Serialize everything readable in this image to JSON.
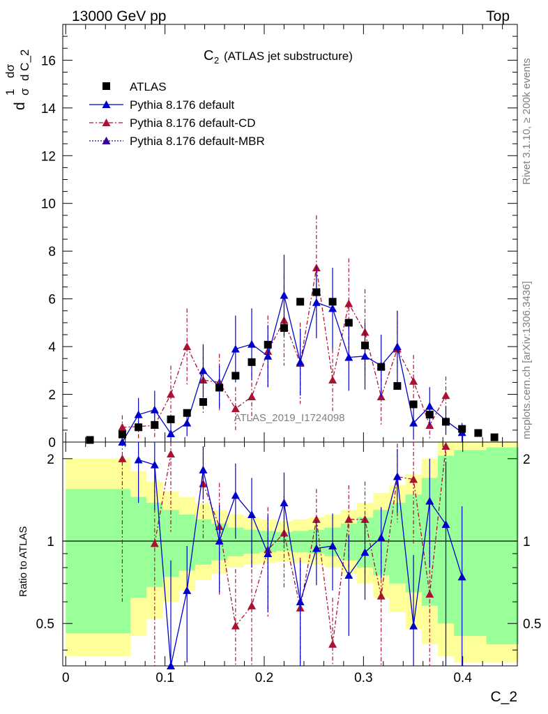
{
  "header": {
    "left": "13000 GeV pp",
    "right": "Top"
  },
  "side": {
    "rivet": "Rivet 3.1.10, ≥ 200k events",
    "mcplots": "mcplots.cern.ch [arXiv:1306.3436]"
  },
  "watermark": "ATLAS_2019_I1724098",
  "chart_data": {
    "type": "scatter",
    "title_main": "C",
    "title_sub": "2",
    "title_rest": "(ATLAS jet substructure)",
    "xlabel": "C_2",
    "ylabel": {
      "d1": "d",
      "one": "1",
      "sigma": "σ",
      "dsig": "dσ",
      "dC": "d C_2"
    },
    "ratio_ylabel": "Ratio to ATLAS",
    "xlim": [
      -0.003,
      0.455
    ],
    "ylim": [
      0,
      17.5
    ],
    "ratio_ylim": [
      0.35,
      2.3
    ],
    "x_ticks": [
      "0",
      "0.1",
      "0.2",
      "0.3",
      "0.4"
    ],
    "x_tick_values": [
      0,
      0.1,
      0.2,
      0.3,
      0.4
    ],
    "y_ticks": [
      "0",
      "2",
      "4",
      "6",
      "8",
      "10",
      "12",
      "14",
      "16"
    ],
    "y_tick_values": [
      0,
      2,
      4,
      6,
      8,
      10,
      12,
      14,
      16
    ],
    "ratio_ticks": [
      "0.5",
      "1",
      "2"
    ],
    "ratio_tick_values": [
      0.5,
      1,
      2
    ],
    "bin_edges": [
      0.0,
      0.0163,
      0.0326,
      0.0489,
      0.0652,
      0.0815,
      0.0978,
      0.1141,
      0.1304,
      0.1467,
      0.163,
      0.1793,
      0.1956,
      0.2119,
      0.2282,
      0.2445,
      0.2608,
      0.2771,
      0.2934,
      0.3097,
      0.326,
      0.3423,
      0.3586,
      0.3749,
      0.3912,
      0.4075,
      0.4238,
      0.4401,
      0.4564
    ],
    "x": [
      0.0244,
      0.057,
      0.0733,
      0.0896,
      0.1059,
      0.1222,
      0.1385,
      0.1548,
      0.1711,
      0.1874,
      0.2037,
      0.22,
      0.2363,
      0.2526,
      0.2689,
      0.2852,
      0.3015,
      0.3178,
      0.3341,
      0.3504,
      0.3667,
      0.383,
      0.3993,
      0.4156,
      0.4319
    ],
    "series": [
      {
        "name": "ATLAS",
        "color": "#000000",
        "values": [
          0.05,
          0.32,
          0.62,
          0.72,
          0.95,
          1.22,
          1.68,
          2.28,
          2.78,
          3.35,
          4.08,
          4.78,
          5.88,
          6.28,
          5.88,
          5.0,
          4.05,
          3.15,
          2.35,
          1.58,
          1.15,
          0.85,
          0.55,
          0.38,
          0.2
        ]
      },
      {
        "name": "Pythia 8.176 default",
        "color": "#0000cc",
        "x": [
          0.057,
          0.0733,
          0.0896,
          0.1059,
          0.1222,
          0.1385,
          0.1548,
          0.1711,
          0.1874,
          0.2037,
          0.22,
          0.2363,
          0.2526,
          0.2689,
          0.2852,
          0.3015,
          0.3178,
          0.3341,
          0.3504,
          0.3667,
          0.383,
          0.3993
        ],
        "values": [
          0.0,
          1.15,
          1.35,
          0.35,
          0.8,
          3.0,
          2.3,
          3.9,
          4.1,
          3.6,
          6.15,
          3.35,
          5.85,
          5.6,
          3.55,
          3.6,
          3.2,
          4.0,
          0.8,
          1.5,
          0.9,
          0.4
        ],
        "err": [
          0.0,
          0.7,
          0.8,
          0.5,
          0.55,
          1.1,
          0.9,
          1.4,
          1.5,
          1.3,
          1.7,
          1.4,
          1.5,
          1.7,
          1.4,
          1.4,
          1.3,
          1.5,
          0.7,
          0.8,
          0.6,
          0.4
        ],
        "ratio": [
          null,
          1.98,
          1.9,
          0.35,
          0.66,
          1.82,
          1.0,
          1.47,
          1.25,
          0.9,
          1.38,
          0.6,
          0.94,
          0.96,
          0.75,
          0.91,
          1.03,
          1.72,
          0.49,
          1.4,
          1.15,
          0.74
        ],
        "ratio_err": [
          null,
          0.6,
          0.6,
          0.5,
          0.3,
          0.4,
          0.35,
          0.45,
          0.45,
          0.35,
          0.4,
          0.25,
          0.25,
          0.3,
          0.3,
          0.3,
          0.3,
          0.45,
          0.4,
          0.6,
          0.8,
          0.6
        ]
      },
      {
        "name": "Pythia 8.176 default-CD",
        "color": "#aa1133",
        "x": [
          0.057,
          0.0733,
          0.0896,
          0.1059,
          0.1222,
          0.1385,
          0.1548,
          0.1711,
          0.1874,
          0.2037,
          0.22,
          0.2363,
          0.2526,
          0.2689,
          0.2852,
          0.3015,
          0.3178,
          0.3341,
          0.3504,
          0.3667,
          0.383
        ],
        "values": [
          0.62,
          0.65,
          0.7,
          2.0,
          4.0,
          2.6,
          2.5,
          1.4,
          1.9,
          3.8,
          5.1,
          3.3,
          7.3,
          2.6,
          5.8,
          4.6,
          1.9,
          3.9,
          2.55,
          0.7,
          1.95
        ],
        "err": [
          0.5,
          0.5,
          0.5,
          1.2,
          1.6,
          1.4,
          1.2,
          0.9,
          1.0,
          1.5,
          1.9,
          1.7,
          2.2,
          1.3,
          1.9,
          1.8,
          1.2,
          1.6,
          1.1,
          0.6,
          0.8
        ],
        "ratio": [
          2.0,
          null,
          0.98,
          2.08,
          null,
          1.62,
          1.13,
          0.49,
          0.58,
          0.93,
          1.07,
          0.57,
          1.2,
          0.42,
          1.2,
          1.2,
          0.63,
          1.72,
          1.68,
          0.64,
          2.22
        ],
        "ratio_err": [
          1.4,
          null,
          0.7,
          1.0,
          null,
          0.6,
          0.5,
          0.3,
          0.35,
          0.4,
          0.4,
          0.3,
          0.35,
          0.2,
          0.4,
          0.45,
          0.3,
          0.55,
          0.7,
          0.45,
          0.6
        ]
      },
      {
        "name": "Pythia 8.176 default-MBR",
        "color": "#330099",
        "values": []
      }
    ],
    "bands": {
      "green_hi": [
        1.55,
        1.55,
        1.55,
        1.55,
        1.45,
        1.38,
        1.3,
        1.25,
        1.2,
        1.16,
        1.12,
        1.1,
        1.09,
        1.08,
        1.09,
        1.1,
        1.12,
        1.16,
        1.22,
        1.3,
        1.38,
        1.48,
        1.7,
        2.05,
        2.15,
        2.15,
        2.2,
        2.2
      ],
      "green_lo": [
        0.46,
        0.46,
        0.46,
        0.46,
        0.62,
        0.68,
        0.74,
        0.78,
        0.82,
        0.85,
        0.88,
        0.9,
        0.91,
        0.92,
        0.91,
        0.9,
        0.88,
        0.85,
        0.8,
        0.75,
        0.7,
        0.65,
        0.58,
        0.5,
        0.45,
        0.45,
        0.42,
        0.42
      ],
      "yellow_hi": [
        2.0,
        2.0,
        2.0,
        2.0,
        1.8,
        1.65,
        1.52,
        1.45,
        1.38,
        1.3,
        1.25,
        1.22,
        1.2,
        1.18,
        1.2,
        1.22,
        1.25,
        1.3,
        1.38,
        1.5,
        1.6,
        1.75,
        2.0,
        2.3,
        2.3,
        2.3,
        2.3,
        2.3
      ],
      "yellow_lo": [
        0.38,
        0.38,
        0.38,
        0.38,
        0.45,
        0.52,
        0.6,
        0.66,
        0.72,
        0.76,
        0.8,
        0.82,
        0.83,
        0.84,
        0.83,
        0.82,
        0.8,
        0.76,
        0.7,
        0.62,
        0.55,
        0.48,
        0.42,
        0.38,
        0.36,
        0.36,
        0.36,
        0.36
      ]
    }
  }
}
